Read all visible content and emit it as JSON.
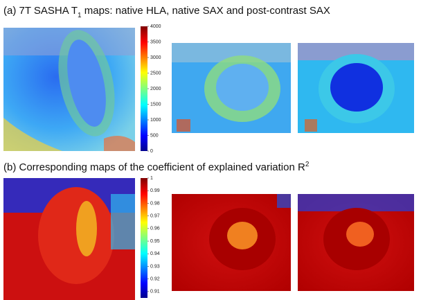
{
  "panel_a": {
    "title": {
      "lead": "(a) 7T SASHA T",
      "sub": "1",
      "rest": " maps: native HLA, native SAX and post-contrast SAX"
    },
    "colorbar": {
      "lim": [
        0,
        4000
      ],
      "ticks": [
        0,
        500,
        1000,
        1500,
        2000,
        2500,
        3000,
        3500,
        4000
      ]
    }
  },
  "panel_b": {
    "title": {
      "lead": "(b) Corresponding maps of the coefficient of explained variation R",
      "sup": "2"
    },
    "colorbar": {
      "lim": [
        0.905,
        1
      ],
      "ticks": [
        0.91,
        0.92,
        0.93,
        0.94,
        0.95,
        0.96,
        0.97,
        0.98,
        0.99,
        1
      ]
    }
  }
}
